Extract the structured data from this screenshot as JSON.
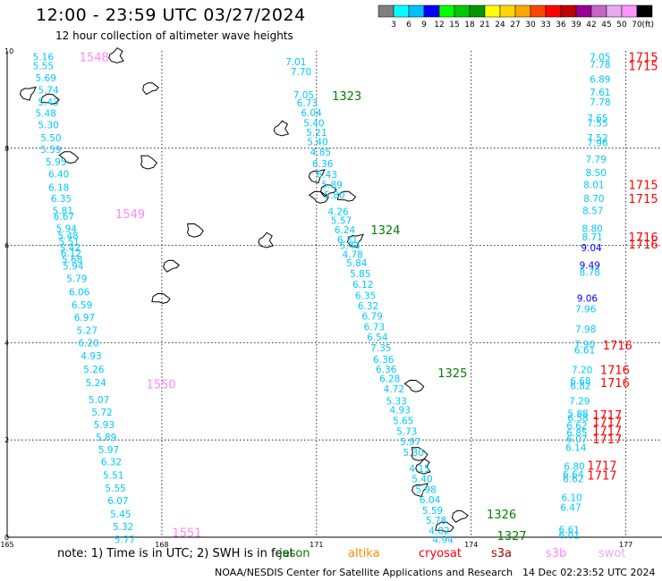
{
  "header": {
    "title": "12:00 - 23:59 UTC 03/27/2024",
    "subtitle": "12 hour collection of altimeter wave heights"
  },
  "legend": {
    "unit": "(ft)",
    "bins": [
      {
        "label": "3",
        "color": "#808080"
      },
      {
        "label": "6",
        "color": "#00ffff"
      },
      {
        "label": "9",
        "color": "#00c0ff"
      },
      {
        "label": "12",
        "color": "#0000ff"
      },
      {
        "label": "15",
        "color": "#00ff00"
      },
      {
        "label": "18",
        "color": "#00c800"
      },
      {
        "label": "21",
        "color": "#009600"
      },
      {
        "label": "24",
        "color": "#ffff00"
      },
      {
        "label": "27",
        "color": "#ffd700"
      },
      {
        "label": "30",
        "color": "#ffa500"
      },
      {
        "label": "33",
        "color": "#ff4500"
      },
      {
        "label": "36",
        "color": "#ff0000"
      },
      {
        "label": "39",
        "color": "#c00000"
      },
      {
        "label": "42",
        "color": "#960096"
      },
      {
        "label": "45",
        "color": "#c864c8"
      },
      {
        "label": "50",
        "color": "#e6aaf0"
      },
      {
        "label": "70",
        "color": "#ff96ff"
      },
      {
        "label": "",
        "color": "#000000"
      }
    ]
  },
  "axes": {
    "x_ticks": [
      {
        "lon": 165,
        "label": "165"
      },
      {
        "lon": 168,
        "label": "168"
      },
      {
        "lon": 171,
        "label": "171"
      },
      {
        "lon": 174,
        "label": "174"
      },
      {
        "lon": 177,
        "label": "177"
      }
    ],
    "y_ticks": [
      {
        "lat": 0,
        "label": "0"
      },
      {
        "lat": 2,
        "label": "2"
      },
      {
        "lat": 4,
        "label": "4"
      },
      {
        "lat": 6,
        "label": "6"
      },
      {
        "lat": 8,
        "label": "8"
      },
      {
        "lat": 10,
        "label": "10"
      }
    ],
    "lon_range": [
      165,
      177.7
    ],
    "lat_range": [
      0,
      10
    ]
  },
  "colors": {
    "swh": "#00c8ff",
    "swh_high": "#0000ff",
    "jason_time": "#008000",
    "altika_time": "#ff8c00",
    "cryosat_time": "#ff0000",
    "s3a_time": "#990000",
    "s3b_time": "#ff88ff"
  },
  "tracks": [
    {
      "satellite": "s3b",
      "time_labels": [
        {
          "text": "1548",
          "lat": 9.88,
          "lon": 166.4
        },
        {
          "text": "1549",
          "lat": 6.65,
          "lon": 167.1
        },
        {
          "text": "1550",
          "lat": 3.15,
          "lon": 167.7
        },
        {
          "text": "1551",
          "lat": 0.1,
          "lon": 168.2
        }
      ],
      "values": [
        {
          "swh": "5.16",
          "lat": 9.88,
          "lon": 165.7
        },
        {
          "swh": "5.55",
          "lat": 9.7,
          "lon": 165.7
        },
        {
          "swh": "5.69",
          "lat": 9.45,
          "lon": 165.75
        },
        {
          "swh": "5.74",
          "lat": 9.2,
          "lon": 165.8
        },
        {
          "swh": "5.43",
          "lat": 8.95,
          "lon": 165.8
        },
        {
          "swh": "5.48",
          "lat": 8.72,
          "lon": 165.75
        },
        {
          "swh": "5.30",
          "lat": 8.48,
          "lon": 165.8
        },
        {
          "swh": "5.50",
          "lat": 8.22,
          "lon": 165.85
        },
        {
          "swh": "5.59",
          "lat": 7.98,
          "lon": 165.85
        },
        {
          "swh": "5.95",
          "lat": 7.72,
          "lon": 165.95
        },
        {
          "swh": "6.40",
          "lat": 7.47,
          "lon": 166.0
        },
        {
          "swh": "6.18",
          "lat": 7.2,
          "lon": 166.0
        },
        {
          "swh": "6.35",
          "lat": 6.97,
          "lon": 166.05
        },
        {
          "swh": "5.81",
          "lat": 6.72,
          "lon": 166.08
        },
        {
          "swh": "6.67",
          "lat": 6.6,
          "lon": 166.1
        },
        {
          "swh": "5.94",
          "lat": 6.35,
          "lon": 166.15
        },
        {
          "swh": "5.48",
          "lat": 6.2,
          "lon": 166.18
        },
        {
          "swh": "5.51",
          "lat": 6.08,
          "lon": 166.2
        },
        {
          "swh": "5.42",
          "lat": 5.96,
          "lon": 166.22
        },
        {
          "swh": "6.12",
          "lat": 5.85,
          "lon": 166.24
        },
        {
          "swh": "5.68",
          "lat": 5.72,
          "lon": 166.26
        },
        {
          "swh": "5.94",
          "lat": 5.58,
          "lon": 166.28
        },
        {
          "swh": "5.79",
          "lat": 5.32,
          "lon": 166.35
        },
        {
          "swh": "6.06",
          "lat": 5.05,
          "lon": 166.4
        },
        {
          "swh": "6.59",
          "lat": 4.78,
          "lon": 166.45
        },
        {
          "swh": "6.97",
          "lat": 4.52,
          "lon": 166.5
        },
        {
          "swh": "5.27",
          "lat": 4.26,
          "lon": 166.55
        },
        {
          "swh": "6.20",
          "lat": 4.0,
          "lon": 166.58
        },
        {
          "swh": "4.93",
          "lat": 3.73,
          "lon": 166.63
        },
        {
          "swh": "5.26",
          "lat": 3.46,
          "lon": 166.68
        },
        {
          "swh": "5.24",
          "lat": 3.18,
          "lon": 166.72
        },
        {
          "swh": "5.07",
          "lat": 2.83,
          "lon": 166.78
        },
        {
          "swh": "5.72",
          "lat": 2.57,
          "lon": 166.84
        },
        {
          "swh": "5.93",
          "lat": 2.32,
          "lon": 166.88
        },
        {
          "swh": "5.89",
          "lat": 2.06,
          "lon": 166.92
        },
        {
          "swh": "5.97",
          "lat": 1.8,
          "lon": 166.97
        },
        {
          "swh": "6.32",
          "lat": 1.55,
          "lon": 167.02
        },
        {
          "swh": "5.51",
          "lat": 1.28,
          "lon": 167.06
        },
        {
          "swh": "5.55",
          "lat": 1.01,
          "lon": 167.1
        },
        {
          "swh": "6.07",
          "lat": 0.75,
          "lon": 167.15
        },
        {
          "swh": "5.45",
          "lat": 0.48,
          "lon": 167.2
        },
        {
          "swh": "5.32",
          "lat": 0.22,
          "lon": 167.25
        },
        {
          "swh": "5.77",
          "lat": -0.05,
          "lon": 167.28
        }
      ]
    },
    {
      "satellite": "jason",
      "time_labels": [
        {
          "text": "1323",
          "lat": 9.08,
          "lon": 171.3
        },
        {
          "text": "1324",
          "lat": 6.32,
          "lon": 172.05
        },
        {
          "text": "1325",
          "lat": 3.38,
          "lon": 173.35
        },
        {
          "text": "1326",
          "lat": 0.48,
          "lon": 174.3
        },
        {
          "text": "1327",
          "lat": 0.04,
          "lon": 174.5
        }
      ],
      "values": [
        {
          "swh": "7.01",
          "lat": 9.78,
          "lon": 170.6
        },
        {
          "swh": "7.70",
          "lat": 9.58,
          "lon": 170.7
        },
        {
          "swh": "7.05",
          "lat": 9.1,
          "lon": 170.75
        },
        {
          "swh": "6.73",
          "lat": 8.93,
          "lon": 170.82
        },
        {
          "swh": "6.04",
          "lat": 8.73,
          "lon": 170.9
        },
        {
          "swh": "5.40",
          "lat": 8.52,
          "lon": 170.95
        },
        {
          "swh": "5.21",
          "lat": 8.33,
          "lon": 171.0
        },
        {
          "swh": "5.40",
          "lat": 8.13,
          "lon": 171.02
        },
        {
          "swh": "4.85",
          "lat": 7.92,
          "lon": 171.08
        },
        {
          "swh": "6.36",
          "lat": 7.68,
          "lon": 171.12
        },
        {
          "swh": "6.43",
          "lat": 7.46,
          "lon": 171.2
        },
        {
          "swh": "5.89",
          "lat": 7.25,
          "lon": 171.3
        },
        {
          "swh": "5.80",
          "lat": 7.04,
          "lon": 171.35
        },
        {
          "swh": "4.26",
          "lat": 6.7,
          "lon": 171.42
        },
        {
          "swh": "5.57",
          "lat": 6.52,
          "lon": 171.48
        },
        {
          "swh": "6.24",
          "lat": 6.32,
          "lon": 171.55
        },
        {
          "swh": "6.31",
          "lat": 6.12,
          "lon": 171.6
        },
        {
          "swh": "5.44",
          "lat": 6.0,
          "lon": 171.65
        },
        {
          "swh": "4.78",
          "lat": 5.82,
          "lon": 171.7
        },
        {
          "swh": "5.84",
          "lat": 5.64,
          "lon": 171.78
        },
        {
          "swh": "5.85",
          "lat": 5.42,
          "lon": 171.85
        },
        {
          "swh": "6.12",
          "lat": 5.2,
          "lon": 171.9
        },
        {
          "swh": "6.35",
          "lat": 4.97,
          "lon": 171.95
        },
        {
          "swh": "6.32",
          "lat": 4.76,
          "lon": 172.0
        },
        {
          "swh": "6.79",
          "lat": 4.55,
          "lon": 172.08
        },
        {
          "swh": "6.73",
          "lat": 4.33,
          "lon": 172.12
        },
        {
          "swh": "6.54",
          "lat": 4.12,
          "lon": 172.18
        },
        {
          "swh": "7.35",
          "lat": 3.9,
          "lon": 172.25
        },
        {
          "swh": "6.36",
          "lat": 3.66,
          "lon": 172.3
        },
        {
          "swh": "6.36",
          "lat": 3.46,
          "lon": 172.35
        },
        {
          "swh": "6.28",
          "lat": 3.26,
          "lon": 172.42
        },
        {
          "swh": "4.72",
          "lat": 3.05,
          "lon": 172.5
        },
        {
          "swh": "5.33",
          "lat": 2.8,
          "lon": 172.55
        },
        {
          "swh": "4.93",
          "lat": 2.62,
          "lon": 172.62
        },
        {
          "swh": "5.65",
          "lat": 2.4,
          "lon": 172.68
        },
        {
          "swh": "5.73",
          "lat": 2.18,
          "lon": 172.75
        },
        {
          "swh": "5.97",
          "lat": 1.97,
          "lon": 172.82
        },
        {
          "swh": "5.30",
          "lat": 1.75,
          "lon": 172.88
        },
        {
          "swh": "4.15",
          "lat": 1.42,
          "lon": 173.0
        },
        {
          "swh": "5.40",
          "lat": 1.2,
          "lon": 173.05
        },
        {
          "swh": "5.98",
          "lat": 0.98,
          "lon": 173.12
        },
        {
          "swh": "6.04",
          "lat": 0.77,
          "lon": 173.2
        },
        {
          "swh": "5.59",
          "lat": 0.55,
          "lon": 173.25
        },
        {
          "swh": "5.78",
          "lat": 0.35,
          "lon": 173.32
        },
        {
          "swh": "4.82",
          "lat": 0.14,
          "lon": 173.38
        },
        {
          "swh": "4.94",
          "lat": -0.05,
          "lon": 173.45
        }
      ]
    },
    {
      "satellite": "cryosat",
      "time_labels": [
        {
          "text": "1715",
          "lat": 9.88,
          "lon": 177.05
        },
        {
          "text": "1715",
          "lat": 9.7,
          "lon": 177.05
        },
        {
          "text": "1715",
          "lat": 7.25,
          "lon": 177.05
        },
        {
          "text": "1715",
          "lat": 6.97,
          "lon": 177.05
        },
        {
          "text": "1716",
          "lat": 6.18,
          "lon": 177.05
        },
        {
          "text": "1716",
          "lat": 6.03,
          "lon": 177.05
        },
        {
          "text": "1716",
          "lat": 3.95,
          "lon": 176.55
        },
        {
          "text": "1716",
          "lat": 3.45,
          "lon": 176.5
        },
        {
          "text": "1716",
          "lat": 3.18,
          "lon": 176.5
        },
        {
          "text": "1717",
          "lat": 2.52,
          "lon": 176.35
        },
        {
          "text": "1717",
          "lat": 2.38,
          "lon": 176.35
        },
        {
          "text": "1717",
          "lat": 2.2,
          "lon": 176.35
        },
        {
          "text": "1717",
          "lat": 2.02,
          "lon": 176.35
        },
        {
          "text": "1717",
          "lat": 1.48,
          "lon": 176.25
        },
        {
          "text": "1717",
          "lat": 1.28,
          "lon": 176.25
        }
      ],
      "values": [
        {
          "swh": "7.05",
          "lat": 9.88,
          "lon": 176.5
        },
        {
          "swh": "7.78",
          "lat": 9.72,
          "lon": 176.5
        },
        {
          "swh": "6.89",
          "lat": 9.42,
          "lon": 176.5
        },
        {
          "swh": "7.61",
          "lat": 9.15,
          "lon": 176.5
        },
        {
          "swh": "7.78",
          "lat": 8.95,
          "lon": 176.5
        },
        {
          "swh": "7.65",
          "lat": 8.62,
          "lon": 176.45
        },
        {
          "swh": "7.55",
          "lat": 8.52,
          "lon": 176.45
        },
        {
          "swh": "7.52",
          "lat": 8.22,
          "lon": 176.45
        },
        {
          "swh": "7.96",
          "lat": 8.12,
          "lon": 176.45
        },
        {
          "swh": "7.79",
          "lat": 7.78,
          "lon": 176.42
        },
        {
          "swh": "8.50",
          "lat": 7.5,
          "lon": 176.42
        },
        {
          "swh": "8.01",
          "lat": 7.25,
          "lon": 176.38
        },
        {
          "swh": "8.70",
          "lat": 6.97,
          "lon": 176.38
        },
        {
          "swh": "8.57",
          "lat": 6.72,
          "lon": 176.36
        },
        {
          "swh": "8.80",
          "lat": 6.35,
          "lon": 176.35
        },
        {
          "swh": "8.71",
          "lat": 6.18,
          "lon": 176.35
        },
        {
          "swh": "9.04",
          "lat": 5.96,
          "lon": 176.33
        },
        {
          "swh": "9.49",
          "lat": 5.6,
          "lon": 176.3
        },
        {
          "swh": "8.78",
          "lat": 5.45,
          "lon": 176.3
        },
        {
          "swh": "9.06",
          "lat": 4.92,
          "lon": 176.25
        },
        {
          "swh": "7.96",
          "lat": 4.7,
          "lon": 176.22
        },
        {
          "swh": "7.98",
          "lat": 4.28,
          "lon": 176.22
        },
        {
          "swh": "7.90",
          "lat": 3.97,
          "lon": 176.2
        },
        {
          "swh": "6.61",
          "lat": 3.85,
          "lon": 176.2
        },
        {
          "swh": "7.20",
          "lat": 3.45,
          "lon": 176.15
        },
        {
          "swh": "6.68",
          "lat": 3.22,
          "lon": 176.12
        },
        {
          "swh": "6.82",
          "lat": 3.12,
          "lon": 176.12
        },
        {
          "swh": "7.29",
          "lat": 2.8,
          "lon": 176.1
        },
        {
          "swh": "5.88",
          "lat": 2.55,
          "lon": 176.07
        },
        {
          "swh": "6.58",
          "lat": 2.45,
          "lon": 176.07
        },
        {
          "swh": "6.62",
          "lat": 2.3,
          "lon": 176.05
        },
        {
          "swh": "6.85",
          "lat": 2.15,
          "lon": 176.05
        },
        {
          "swh": "6.07",
          "lat": 2.02,
          "lon": 176.05
        },
        {
          "swh": "6.14",
          "lat": 1.85,
          "lon": 176.03
        },
        {
          "swh": "6.80",
          "lat": 1.46,
          "lon": 176.0
        },
        {
          "swh": "6.64",
          "lat": 1.3,
          "lon": 175.98
        },
        {
          "swh": "6.62",
          "lat": 1.2,
          "lon": 175.98
        },
        {
          "swh": "6.10",
          "lat": 0.82,
          "lon": 175.95
        },
        {
          "swh": "6.47",
          "lat": 0.62,
          "lon": 175.93
        },
        {
          "swh": "6.61",
          "lat": 0.16,
          "lon": 175.9
        },
        {
          "swh": "6.01",
          "lat": 0.05,
          "lon": 175.9
        }
      ]
    }
  ],
  "islands": [
    {
      "name": "enewetak",
      "lat": 9.9,
      "lon": 167.1
    },
    {
      "name": "bikini",
      "lat": 9.15,
      "lon": 165.4
    },
    {
      "name": "rongelap",
      "lat": 9.25,
      "lon": 167.8
    },
    {
      "name": "kwajalein-n",
      "lat": 9.0,
      "lon": 165.85
    },
    {
      "name": "ujae",
      "lat": 7.8,
      "lon": 166.2
    },
    {
      "name": "kwajalein",
      "lat": 7.7,
      "lon": 167.7
    },
    {
      "name": "wotje",
      "lat": 8.4,
      "lon": 170.3
    },
    {
      "name": "maloelap",
      "lat": 7.45,
      "lon": 171.0
    },
    {
      "name": "majuro-n",
      "lat": 7.15,
      "lon": 171.25
    },
    {
      "name": "aur",
      "lat": 7.0,
      "lon": 171.6
    },
    {
      "name": "majuro",
      "lat": 6.98,
      "lon": 171.05
    },
    {
      "name": "lae",
      "lat": 6.3,
      "lon": 168.6
    },
    {
      "name": "jaluit",
      "lat": 6.1,
      "lon": 170.0
    },
    {
      "name": "mili",
      "lat": 6.12,
      "lon": 171.75
    },
    {
      "name": "ebon",
      "lat": 5.6,
      "lon": 168.2
    },
    {
      "name": "kosrae",
      "lat": 4.9,
      "lon": 168.0
    },
    {
      "name": "makin",
      "lat": 3.1,
      "lon": 172.9
    },
    {
      "name": "abaiang",
      "lat": 1.7,
      "lon": 172.95
    },
    {
      "name": "tarawa",
      "lat": 1.45,
      "lon": 173.05
    },
    {
      "name": "maiana",
      "lat": 1.0,
      "lon": 173.0
    },
    {
      "name": "abemama",
      "lat": 0.45,
      "lon": 173.8
    },
    {
      "name": "kuria",
      "lat": 0.2,
      "lon": 173.5
    }
  ],
  "footer": {
    "note": "note: 1) Time is in UTC; 2) SWH is in feet",
    "satellites": [
      {
        "name": "jason",
        "color": "#008000"
      },
      {
        "name": "altika",
        "color": "#ff8c00"
      },
      {
        "name": "cryosat",
        "color": "#ff0000"
      },
      {
        "name": "s3a",
        "color": "#990000"
      },
      {
        "name": "s3b",
        "color": "#ff88ff"
      },
      {
        "name": "swot",
        "color": "#e6aaf0"
      }
    ],
    "credit": "NOAA/NESDIS Center for Satellite Applications and Research",
    "stamp": "14 Dec 02:23:52 UTC 2024"
  }
}
